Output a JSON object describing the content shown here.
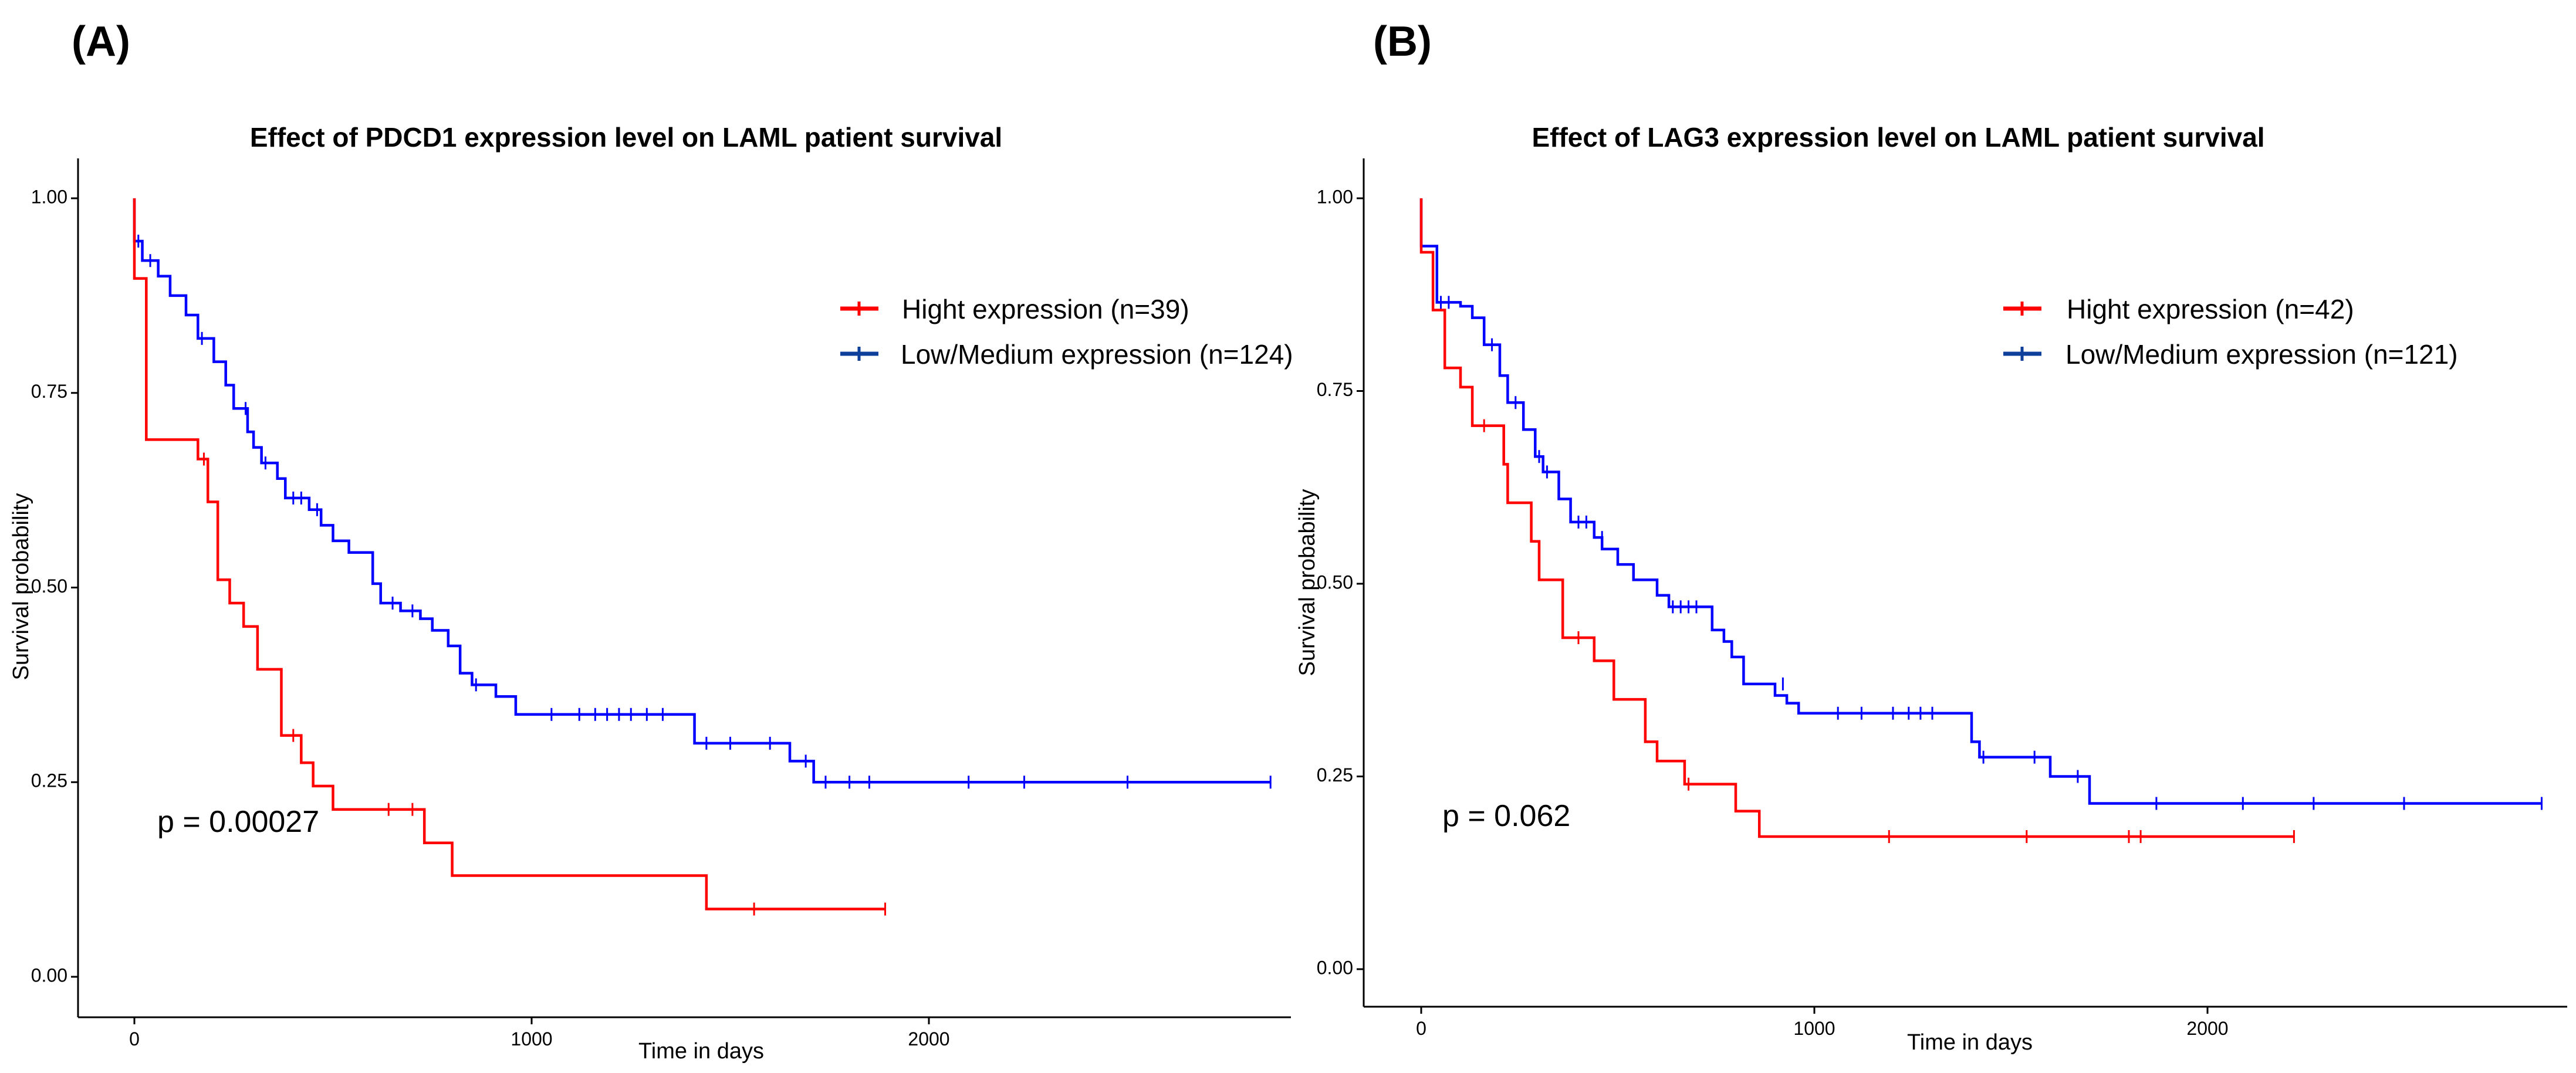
{
  "chart_data": [
    {
      "type": "line",
      "subtype": "kaplan-meier",
      "panel_label": "(A)",
      "title": "Effect of PDCD1 expression level on LAML patient survival",
      "xlabel": "Time in days",
      "ylabel": "Survival probability",
      "xlim": [
        -140,
        2920
      ],
      "ylim": [
        -0.05,
        1.05
      ],
      "xticks": [
        0,
        1000,
        2000
      ],
      "yticks": [
        0.0,
        0.25,
        0.5,
        0.75,
        1.0
      ],
      "ytick_labels": [
        "0.00",
        "0.25",
        "0.50",
        "0.75",
        "1.00"
      ],
      "pvalue_text": "p = 0.00027",
      "pvalue_pos": [
        60,
        0.2
      ],
      "series": [
        {
          "name": "Hight expression (n=39)",
          "color": "#ff0000",
          "steps": [
            [
              0,
              0.897
            ],
            [
              30,
              0.69
            ],
            [
              160,
              0.665
            ],
            [
              185,
              0.61
            ],
            [
              210,
              0.51
            ],
            [
              240,
              0.48
            ],
            [
              275,
              0.45
            ],
            [
              310,
              0.395
            ],
            [
              370,
              0.31
            ],
            [
              420,
              0.275
            ],
            [
              450,
              0.245
            ],
            [
              500,
              0.215
            ],
            [
              730,
              0.172
            ],
            [
              800,
              0.13
            ],
            [
              1440,
              0.087
            ]
          ],
          "end_x": 1890,
          "censors": [
            [
              175,
              0.665
            ],
            [
              400,
              0.31
            ],
            [
              640,
              0.215
            ],
            [
              700,
              0.215
            ],
            [
              1560,
              0.087
            ],
            [
              1890,
              0.087
            ]
          ]
        },
        {
          "name": "Low/Medium expression (n=124)",
          "color": "#0000ff",
          "steps": [
            [
              0,
              0.945
            ],
            [
              20,
              0.92
            ],
            [
              60,
              0.9
            ],
            [
              90,
              0.875
            ],
            [
              130,
              0.85
            ],
            [
              160,
              0.82
            ],
            [
              200,
              0.79
            ],
            [
              230,
              0.76
            ],
            [
              250,
              0.73
            ],
            [
              285,
              0.7
            ],
            [
              300,
              0.68
            ],
            [
              320,
              0.66
            ],
            [
              360,
              0.64
            ],
            [
              380,
              0.615
            ],
            [
              440,
              0.6
            ],
            [
              470,
              0.58
            ],
            [
              500,
              0.56
            ],
            [
              540,
              0.545
            ],
            [
              600,
              0.505
            ],
            [
              620,
              0.48
            ],
            [
              670,
              0.47
            ],
            [
              720,
              0.46
            ],
            [
              750,
              0.445
            ],
            [
              790,
              0.425
            ],
            [
              820,
              0.39
            ],
            [
              850,
              0.375
            ],
            [
              910,
              0.36
            ],
            [
              960,
              0.337
            ],
            [
              1410,
              0.3
            ],
            [
              1650,
              0.277
            ],
            [
              1710,
              0.25
            ]
          ],
          "end_x": 2860,
          "censors": [
            [
              0,
              0.945
            ],
            [
              10,
              0.945
            ],
            [
              40,
              0.92
            ],
            [
              170,
              0.82
            ],
            [
              280,
              0.73
            ],
            [
              330,
              0.66
            ],
            [
              400,
              0.615
            ],
            [
              420,
              0.615
            ],
            [
              460,
              0.6
            ],
            [
              650,
              0.48
            ],
            [
              700,
              0.47
            ],
            [
              860,
              0.375
            ],
            [
              1050,
              0.337
            ],
            [
              1120,
              0.337
            ],
            [
              1160,
              0.337
            ],
            [
              1190,
              0.337
            ],
            [
              1220,
              0.337
            ],
            [
              1250,
              0.337
            ],
            [
              1290,
              0.337
            ],
            [
              1330,
              0.337
            ],
            [
              1440,
              0.3
            ],
            [
              1500,
              0.3
            ],
            [
              1600,
              0.3
            ],
            [
              1690,
              0.277
            ],
            [
              1740,
              0.25
            ],
            [
              1800,
              0.25
            ],
            [
              1850,
              0.25
            ],
            [
              2100,
              0.25
            ],
            [
              2240,
              0.25
            ],
            [
              2500,
              0.25
            ],
            [
              2860,
              0.25
            ]
          ]
        }
      ]
    },
    {
      "type": "line",
      "subtype": "kaplan-meier",
      "panel_label": "(B)",
      "title": "Effect of LAG3 expression level on LAML patient survival",
      "xlabel": "Time in days",
      "ylabel": "Survival probability",
      "xlim": [
        -140,
        2920
      ],
      "ylim": [
        -0.05,
        1.05
      ],
      "xticks": [
        0,
        1000,
        2000
      ],
      "yticks": [
        0.0,
        0.25,
        0.5,
        0.75,
        1.0
      ],
      "ytick_labels": [
        "0.00",
        "0.25",
        "0.50",
        "0.75",
        "1.00"
      ],
      "pvalue_text": "p = 0.062",
      "pvalue_pos": [
        60,
        0.2
      ],
      "series": [
        {
          "name": "Hight expression (n=42)",
          "color": "#ff0000",
          "steps": [
            [
              0,
              0.93
            ],
            [
              30,
              0.855
            ],
            [
              60,
              0.78
            ],
            [
              100,
              0.755
            ],
            [
              130,
              0.705
            ],
            [
              175,
              0.705
            ],
            [
              210,
              0.655
            ],
            [
              220,
              0.605
            ],
            [
              280,
              0.555
            ],
            [
              300,
              0.505
            ],
            [
              360,
              0.43
            ],
            [
              440,
              0.4
            ],
            [
              490,
              0.35
            ],
            [
              570,
              0.295
            ],
            [
              600,
              0.27
            ],
            [
              670,
              0.24
            ],
            [
              800,
              0.205
            ],
            [
              860,
              0.172
            ]
          ],
          "end_x": 2220,
          "censors": [
            [
              160,
              0.705
            ],
            [
              400,
              0.43
            ],
            [
              680,
              0.24
            ],
            [
              1190,
              0.172
            ],
            [
              1540,
              0.172
            ],
            [
              1800,
              0.172
            ],
            [
              1830,
              0.172
            ],
            [
              2220,
              0.172
            ]
          ]
        },
        {
          "name": "Low/Medium expression (n=121)",
          "color": "#0000ff",
          "steps": [
            [
              0,
              0.938
            ],
            [
              40,
              0.865
            ],
            [
              100,
              0.86
            ],
            [
              130,
              0.845
            ],
            [
              160,
              0.81
            ],
            [
              200,
              0.77
            ],
            [
              220,
              0.735
            ],
            [
              260,
              0.7
            ],
            [
              290,
              0.665
            ],
            [
              310,
              0.645
            ],
            [
              350,
              0.61
            ],
            [
              380,
              0.58
            ],
            [
              440,
              0.56
            ],
            [
              460,
              0.545
            ],
            [
              500,
              0.525
            ],
            [
              540,
              0.505
            ],
            [
              600,
              0.485
            ],
            [
              630,
              0.47
            ],
            [
              740,
              0.44
            ],
            [
              770,
              0.425
            ],
            [
              790,
              0.405
            ],
            [
              820,
              0.37
            ],
            [
              900,
              0.355
            ],
            [
              930,
              0.345
            ],
            [
              960,
              0.332
            ],
            [
              1400,
              0.295
            ],
            [
              1420,
              0.275
            ],
            [
              1600,
              0.25
            ],
            [
              1700,
              0.215
            ]
          ],
          "end_x": 2850,
          "censors": [
            [
              0,
              0.938
            ],
            [
              50,
              0.865
            ],
            [
              70,
              0.865
            ],
            [
              180,
              0.81
            ],
            [
              240,
              0.735
            ],
            [
              300,
              0.665
            ],
            [
              320,
              0.645
            ],
            [
              400,
              0.58
            ],
            [
              420,
              0.58
            ],
            [
              460,
              0.56
            ],
            [
              640,
              0.47
            ],
            [
              660,
              0.47
            ],
            [
              680,
              0.47
            ],
            [
              700,
              0.47
            ],
            [
              920,
              0.37
            ],
            [
              1060,
              0.332
            ],
            [
              1120,
              0.332
            ],
            [
              1200,
              0.332
            ],
            [
              1240,
              0.332
            ],
            [
              1270,
              0.332
            ],
            [
              1300,
              0.332
            ],
            [
              1430,
              0.275
            ],
            [
              1560,
              0.275
            ],
            [
              1670,
              0.25
            ],
            [
              1870,
              0.215
            ],
            [
              2090,
              0.215
            ],
            [
              2270,
              0.215
            ],
            [
              2500,
              0.215
            ],
            [
              2850,
              0.215
            ]
          ]
        }
      ]
    }
  ]
}
